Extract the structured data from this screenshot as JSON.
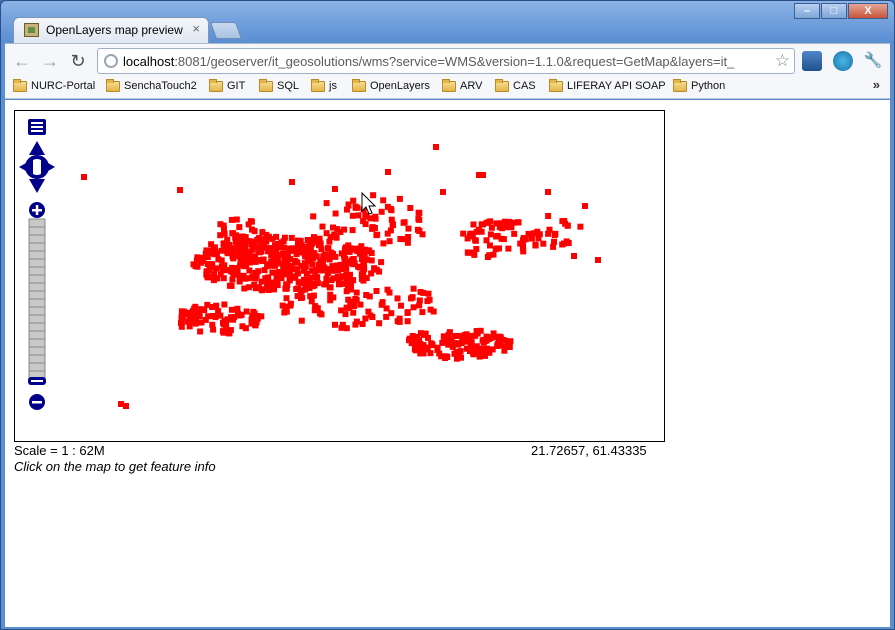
{
  "browser": {
    "tab_title": "OpenLayers map preview",
    "tab_close": "×",
    "window_buttons": [
      "–",
      "□",
      "X"
    ],
    "nav": {
      "back": "←",
      "forward": "→",
      "reload": "↻"
    },
    "url_host": "localhost",
    "url_rest": ":8081/geoserver/it_geosolutions/wms?service=WMS&version=1.1.0&request=GetMap&layers=it_",
    "star": "☆",
    "wrench": "🔧",
    "bookmarks": [
      "NURC-Portal",
      "SenchaTouch2",
      "GIT",
      "SQL",
      "js",
      "OpenLayers",
      "ARV",
      "CAS",
      "LIFERAY API SOAP",
      "Python"
    ],
    "bookmarks_overflow": "»"
  },
  "map": {
    "scale_text": "Scale = 1 : 62M",
    "coords_text": "21.72657, 61.43335",
    "hint_text": "Click on the map to get feature info",
    "point_color": "#ff0000",
    "control_color": "#00008b"
  }
}
